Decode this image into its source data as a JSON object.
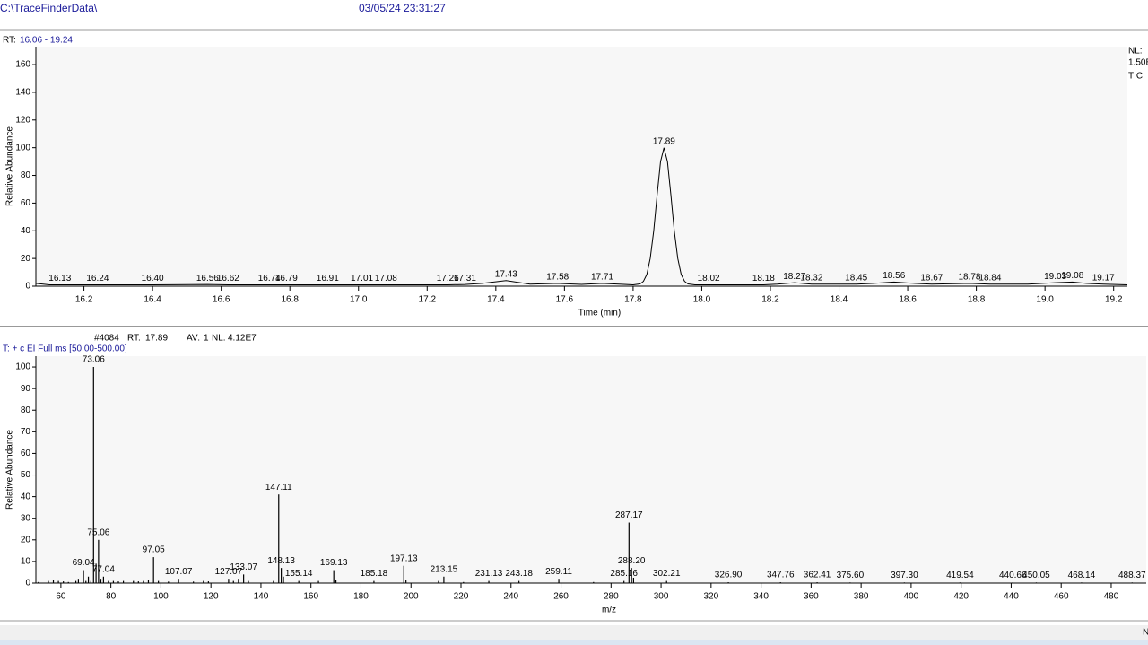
{
  "header": {
    "path": "C:\\TraceFinderData\\",
    "datetime": "03/05/24 23:31:27"
  },
  "chart_data": [
    {
      "type": "line",
      "range_label": "RT:",
      "range": "16.06 - 19.24",
      "nl_label": "NL:",
      "nl_value": "1.50E",
      "trace_label": "TIC",
      "x_label": "Time (min)",
      "y_label": "Relative Abundance",
      "color": "#000000",
      "xlim": [
        16.06,
        19.24
      ],
      "ylim": [
        0,
        173
      ],
      "xticks": [
        16.2,
        16.4,
        16.6,
        16.8,
        {
          "value": 17,
          "label": "17.0"
        },
        17.2,
        17.4,
        17.6,
        17.8,
        {
          "value": 18,
          "label": "18.0"
        },
        18.2,
        18.4,
        18.6,
        18.8,
        {
          "value": 19,
          "label": "19.0"
        },
        19.2
      ],
      "yticks": [
        0,
        20,
        40,
        60,
        80,
        100,
        120,
        140,
        160
      ],
      "x": [
        16.06,
        16.1,
        16.13,
        16.24,
        16.4,
        16.56,
        16.62,
        16.74,
        16.79,
        16.91,
        17.01,
        17.08,
        17.26,
        17.31,
        17.36,
        17.43,
        17.5,
        17.58,
        17.65,
        17.71,
        17.78,
        17.8,
        17.81,
        17.82,
        17.83,
        17.84,
        17.85,
        17.86,
        17.87,
        17.88,
        17.89,
        17.9,
        17.91,
        17.92,
        17.93,
        17.94,
        17.95,
        17.96,
        17.97,
        17.98,
        18.02,
        18.18,
        18.22,
        18.27,
        18.32,
        18.45,
        18.5,
        18.56,
        18.62,
        18.67,
        18.78,
        18.84,
        18.95,
        19.03,
        19.08,
        19.12,
        19.17,
        19.24
      ],
      "values": [
        2,
        1,
        1,
        1,
        1,
        1.2,
        1,
        1,
        1,
        1,
        1,
        1,
        1,
        1.2,
        2,
        4,
        1.5,
        2,
        1.3,
        2,
        1.2,
        1,
        1.3,
        1.6,
        3.5,
        8.5,
        20,
        40,
        66,
        90,
        100,
        90,
        66,
        40,
        20,
        8.5,
        3.5,
        1.6,
        1.3,
        1,
        1,
        1,
        1.5,
        2.5,
        1.5,
        1.5,
        2,
        3,
        2,
        1.5,
        2,
        1.5,
        1.5,
        2.5,
        3,
        2,
        1.5,
        1
      ],
      "peak_x": [
        16.13,
        16.24,
        16.4,
        16.56,
        16.62,
        16.74,
        16.79,
        16.91,
        17.01,
        17.08,
        17.26,
        17.31,
        17.43,
        17.58,
        17.71,
        17.89,
        18.02,
        18.18,
        18.27,
        18.32,
        18.45,
        18.56,
        18.67,
        18.78,
        18.84,
        19.03,
        19.08,
        19.17
      ],
      "peak_y": [
        1,
        1,
        1,
        1.2,
        1,
        1,
        1,
        1,
        1,
        1,
        1,
        1.2,
        4,
        2,
        2,
        100,
        1,
        1,
        2.5,
        1.5,
        1.5,
        3,
        1.5,
        2,
        1.5,
        2.5,
        3,
        1.5
      ],
      "peak_labels": [
        "16.13",
        "16.24",
        "16.40",
        "16.56",
        "16.62",
        "16.74",
        "16.79",
        "16.91",
        "17.01",
        "17.08",
        "17.26",
        "17.31",
        "17.43",
        "17.58",
        "17.71",
        "17.89",
        "18.02",
        "18.18",
        "18.27",
        "18.32",
        "18.45",
        "18.56",
        "18.67",
        "18.78",
        "18.84",
        "19.03",
        "19.08",
        "19.17"
      ]
    },
    {
      "type": "stick",
      "scan": "#4084",
      "rt_label": "RT:",
      "rt": "17.89",
      "av_label": "AV:",
      "av": "1",
      "nl_label": "NL:",
      "nl_value": "4.12E7",
      "filter": "T: + c EI Full ms [50.00-500.00]",
      "x_label": "m/z",
      "y_label": "Relative Abundance",
      "color": "#000000",
      "xlim": [
        50,
        494
      ],
      "ylim": [
        0,
        105
      ],
      "xticks": [
        60,
        80,
        100,
        120,
        140,
        160,
        180,
        200,
        220,
        240,
        260,
        280,
        300,
        320,
        340,
        360,
        380,
        400,
        420,
        440,
        460,
        480
      ],
      "yticks": [
        0,
        10,
        20,
        30,
        40,
        50,
        60,
        70,
        80,
        90,
        100
      ],
      "x": [
        51,
        55,
        57,
        59,
        61,
        63,
        66,
        67,
        69.04,
        70,
        71,
        72,
        73.06,
        74.06,
        75.06,
        76,
        77.04,
        79,
        81,
        83,
        85,
        89,
        91,
        93,
        95,
        97.05,
        99,
        103,
        107.07,
        113,
        117,
        119,
        127.07,
        129,
        131,
        133.07,
        135,
        145,
        147.11,
        148.13,
        149,
        155.14,
        163,
        169.13,
        170,
        185.18,
        197.13,
        198,
        211,
        213.15,
        221,
        231.13,
        243.18,
        259.11,
        273,
        285.16,
        287.17,
        288.2,
        289,
        302.21,
        326.9,
        347.76,
        362.41,
        375.6,
        397.3,
        419.54,
        440.66,
        450.05,
        468.14,
        488.37
      ],
      "values": [
        0.5,
        1,
        1.5,
        1,
        0.8,
        0.5,
        1,
        2,
        6,
        1,
        3,
        1,
        100,
        9,
        20,
        2,
        3,
        1,
        1,
        0.8,
        1,
        1,
        0.8,
        1,
        1.5,
        12,
        1,
        0.7,
        2,
        0.7,
        1,
        0.8,
        2,
        1,
        2,
        4,
        1,
        1,
        41,
        7,
        3,
        1,
        1,
        6,
        1.5,
        1,
        8,
        1.5,
        1,
        3,
        0.5,
        1,
        1,
        2,
        0.5,
        1,
        28,
        7,
        2.5,
        1,
        0.4,
        0.4,
        0.4,
        0.3,
        0.3,
        0.3,
        0.3,
        0.3,
        0.3,
        0.3
      ],
      "peak_labels": [
        null,
        null,
        null,
        null,
        null,
        null,
        null,
        null,
        "69.04",
        null,
        null,
        null,
        "73.06",
        null,
        "75.06",
        null,
        "77.04",
        null,
        null,
        null,
        null,
        null,
        null,
        null,
        null,
        "97.05",
        null,
        null,
        "107.07",
        null,
        null,
        null,
        "127.07",
        null,
        null,
        "133.07",
        null,
        null,
        "147.11",
        "148.13",
        null,
        "155.14",
        null,
        "169.13",
        null,
        "185.18",
        "197.13",
        null,
        null,
        "213.15",
        null,
        "231.13",
        "243.18",
        "259.11",
        null,
        "285.16",
        "287.17",
        "288.20",
        null,
        "302.21",
        "326.90",
        "347.76",
        "362.41",
        "375.60",
        "397.30",
        "419.54",
        "440.66",
        "450.05",
        "468.14",
        "488.37"
      ]
    }
  ],
  "status": {
    "text": "N"
  }
}
